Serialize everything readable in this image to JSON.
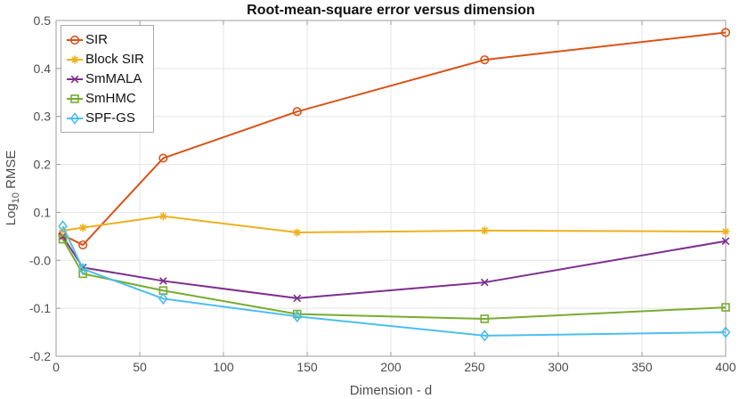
{
  "chart_data": {
    "type": "line",
    "title": "Root-mean-square error versus dimension",
    "xlabel": "Dimension - d",
    "ylabel": "Log_10 RMSE",
    "ylabel_parts": {
      "prefix": "Log",
      "sub": "10",
      "suffix": " RMSE"
    },
    "xlim": [
      0,
      400
    ],
    "ylim": [
      -0.2,
      0.5
    ],
    "xticks": [
      0,
      50,
      100,
      150,
      200,
      250,
      300,
      350,
      400
    ],
    "xtick_labels": [
      "0",
      "50",
      "100",
      "150",
      "200",
      "250",
      "300",
      "350",
      "400"
    ],
    "yticks": [
      -0.2,
      -0.1,
      0.0,
      0.1,
      0.2,
      0.3,
      0.4,
      0.5
    ],
    "ytick_labels": [
      "-0.2",
      "-0.1",
      "-0.0",
      "0.1",
      "0.2",
      "0.3",
      "0.4",
      "0.5"
    ],
    "grid": true,
    "legend_position": "top-left",
    "x": [
      4,
      16,
      64,
      144,
      256,
      400
    ],
    "series": [
      {
        "name": "SIR",
        "color": "#D95319",
        "marker": "circle",
        "values": [
          0.053,
          0.032,
          0.213,
          0.31,
          0.418,
          0.475
        ]
      },
      {
        "name": "Block SIR",
        "color": "#EDB120",
        "marker": "asterisk",
        "values": [
          0.062,
          0.068,
          0.092,
          0.058,
          0.062,
          0.06
        ]
      },
      {
        "name": "SmMALA",
        "color": "#7E2F8E",
        "marker": "x",
        "values": [
          0.05,
          -0.015,
          -0.043,
          -0.079,
          -0.046,
          0.04
        ]
      },
      {
        "name": "SmHMC",
        "color": "#77AC30",
        "marker": "square",
        "values": [
          0.044,
          -0.028,
          -0.063,
          -0.112,
          -0.122,
          -0.098
        ]
      },
      {
        "name": "SPF-GS",
        "color": "#4DBEEE",
        "marker": "diamond",
        "values": [
          0.071,
          -0.018,
          -0.08,
          -0.117,
          -0.157,
          -0.15
        ]
      }
    ],
    "colors": {
      "grid": "#e5e5e5",
      "spine": "#9c9c9c",
      "tick_label": "#4d4d4d",
      "axis_label": "#4d4d4d",
      "title": "#111111",
      "background": "#ffffff"
    }
  }
}
